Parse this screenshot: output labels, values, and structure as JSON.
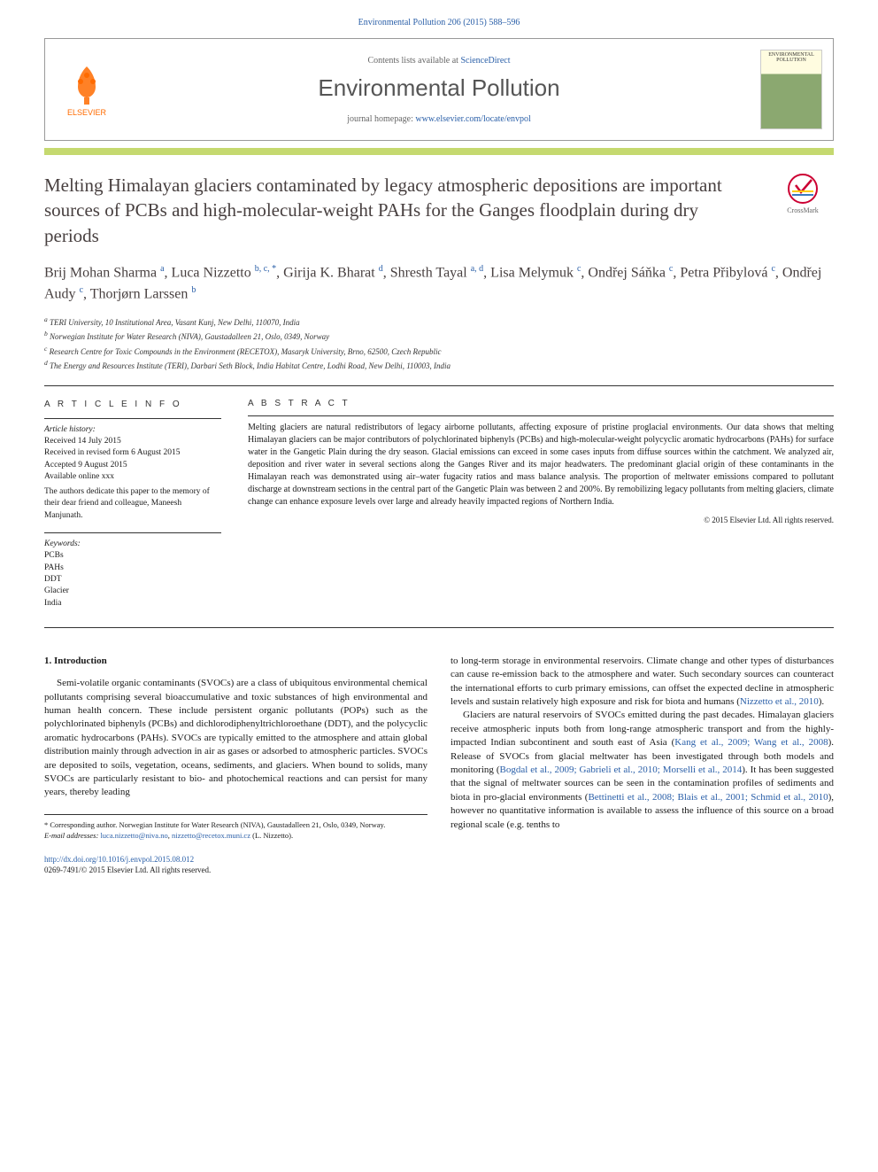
{
  "citation": "Environmental Pollution 206 (2015) 588–596",
  "header": {
    "contents_prefix": "Contents lists available at ",
    "contents_link": "ScienceDirect",
    "journal_name": "Environmental Pollution",
    "homepage_prefix": "journal homepage: ",
    "homepage_link": "www.elsevier.com/locate/envpol",
    "elsevier_label": "ELSEVIER",
    "thumb_title": "ENVIRONMENTAL POLLUTION"
  },
  "colors": {
    "link": "#2a5fa8",
    "elsevier_orange": "#ff6b00",
    "color_bar": "#c5d96f",
    "title_color": "#484040"
  },
  "crossmark_label": "CrossMark",
  "article": {
    "title": "Melting Himalayan glaciers contaminated by legacy atmospheric depositions are important sources of PCBs and high-molecular-weight PAHs for the Ganges floodplain during dry periods",
    "authors_html": "Brij Mohan Sharma <sup>a</sup>, Luca Nizzetto <sup>b, c, *</sup>, Girija K. Bharat <sup>d</sup>, Shresth Tayal <sup>a, d</sup>, Lisa Melymuk <sup>c</sup>, Ondřej Sáňka <sup>c</sup>, Petra Přibylová <sup>c</sup>, Ondřej Audy <sup>c</sup>, Thorjørn Larssen <sup>b</sup>",
    "affiliations": [
      "a TERI University, 10 Institutional Area, Vasant Kunj, New Delhi, 110070, India",
      "b Norwegian Institute for Water Research (NIVA), Gaustadalleen 21, Oslo, 0349, Norway",
      "c Research Centre for Toxic Compounds in the Environment (RECETOX), Masaryk University, Brno, 62500, Czech Republic",
      "d The Energy and Resources Institute (TERI), Darbari Seth Block, India Habitat Centre, Lodhi Road, New Delhi, 110003, India"
    ]
  },
  "info": {
    "heading": "A R T I C L E  I N F O",
    "history_label": "Article history:",
    "received": "Received 14 July 2015",
    "revised": "Received in revised form 6 August 2015",
    "accepted": "Accepted 9 August 2015",
    "online": "Available online xxx",
    "dedication": "The authors dedicate this paper to the memory of their dear friend and colleague, Maneesh Manjunath.",
    "keywords_label": "Keywords:",
    "keywords": [
      "PCBs",
      "PAHs",
      "DDT",
      "Glacier",
      "India"
    ]
  },
  "abstract": {
    "heading": "A B S T R A C T",
    "text": "Melting glaciers are natural redistributors of legacy airborne pollutants, affecting exposure of pristine proglacial environments. Our data shows that melting Himalayan glaciers can be major contributors of polychlorinated biphenyls (PCBs) and high-molecular-weight polycyclic aromatic hydrocarbons (PAHs) for surface water in the Gangetic Plain during the dry season. Glacial emissions can exceed in some cases inputs from diffuse sources within the catchment. We analyzed air, deposition and river water in several sections along the Ganges River and its major headwaters. The predominant glacial origin of these contaminants in the Himalayan reach was demonstrated using air–water fugacity ratios and mass balance analysis. The proportion of meltwater emissions compared to pollutant discharge at downstream sections in the central part of the Gangetic Plain was between 2 and 200%. By remobilizing legacy pollutants from melting glaciers, climate change can enhance exposure levels over large and already heavily impacted regions of Northern India.",
    "copyright": "© 2015 Elsevier Ltd. All rights reserved."
  },
  "body": {
    "intro_heading": "1. Introduction",
    "col1_p1": "Semi-volatile organic contaminants (SVOCs) are a class of ubiquitous environmental chemical pollutants comprising several bioaccumulative and toxic substances of high environmental and human health concern. These include persistent organic pollutants (POPs) such as the polychlorinated biphenyls (PCBs) and dichlorodiphenyltrichloroethane (DDT), and the polycyclic aromatic hydrocarbons (PAHs). SVOCs are typically emitted to the atmosphere and attain global distribution mainly through advection in air as gases or adsorbed to atmospheric particles. SVOCs are deposited to soils, vegetation, oceans, sediments, and glaciers. When bound to solids, many SVOCs are particularly resistant to bio- and photochemical reactions and can persist for many years, thereby leading",
    "col2_p1_a": "to long-term storage in environmental reservoirs. Climate change and other types of disturbances can cause re-emission back to the atmosphere and water. Such secondary sources can counteract the international efforts to curb primary emissions, can offset the expected decline in atmospheric levels and sustain relatively high exposure and risk for biota and humans (",
    "col2_p1_cite1": "Nizzetto et al., 2010",
    "col2_p1_b": ").",
    "col2_p2_a": "Glaciers are natural reservoirs of SVOCs emitted during the past decades. Himalayan glaciers receive atmospheric inputs both from long-range atmospheric transport and from the highly-impacted Indian subcontinent and south east of Asia (",
    "col2_p2_cite1": "Kang et al., 2009; Wang et al., 2008",
    "col2_p2_b": "). Release of SVOCs from glacial meltwater has been investigated through both models and monitoring (",
    "col2_p2_cite2": "Bogdal et al., 2009; Gabrieli et al., 2010; Morselli et al., 2014",
    "col2_p2_c": "). It has been suggested that the signal of meltwater sources can be seen in the contamination profiles of sediments and biota in pro-glacial environments (",
    "col2_p2_cite3": "Bettinetti et al., 2008; Blais et al., 2001; Schmid et al., 2010",
    "col2_p2_d": "), however no quantitative information is available to assess the influence of this source on a broad regional scale (e.g. tenths to"
  },
  "footer": {
    "corr": "* Corresponding author. Norwegian Institute for Water Research (NIVA), Gaustadalleen 21, Oslo, 0349, Norway.",
    "email_label": "E-mail addresses: ",
    "email1": "luca.nizzetto@niva.no",
    "email2": "nizzetto@recetox.muni.cz",
    "email_suffix": " (L. Nizzetto).",
    "doi": "http://dx.doi.org/10.1016/j.envpol.2015.08.012",
    "issn": "0269-7491/© 2015 Elsevier Ltd. All rights reserved."
  }
}
